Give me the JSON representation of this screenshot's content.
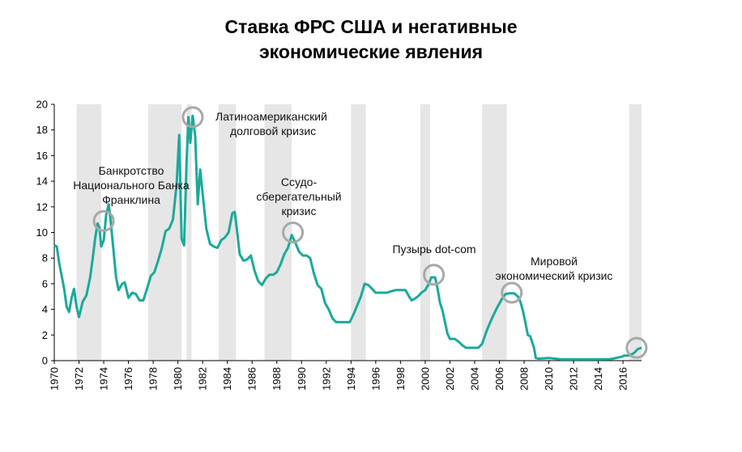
{
  "chart_data": {
    "type": "line",
    "title_lines": [
      "Ставка ФРС США и негативные",
      "экономические явления"
    ],
    "xlabel": "",
    "ylabel": "",
    "xlim": [
      1970,
      2017.5
    ],
    "ylim": [
      0,
      20
    ],
    "yticks": [
      0,
      2,
      4,
      6,
      8,
      10,
      12,
      14,
      16,
      18,
      20
    ],
    "xticks": [
      1970,
      1972,
      1974,
      1976,
      1978,
      1980,
      1982,
      1984,
      1986,
      1988,
      1990,
      1992,
      1994,
      1996,
      1998,
      2000,
      2002,
      2004,
      2006,
      2008,
      2010,
      2012,
      2014,
      2016
    ],
    "line_color": "#1aaa9a",
    "shade_color": "#e6e6e6",
    "circle_color": "#a8a8a8",
    "grid": false,
    "shaded_periods": [
      [
        1971.8,
        1973.8
      ],
      [
        1977.6,
        1980.3
      ],
      [
        1980.7,
        1981.1
      ],
      [
        1983.3,
        1984.7
      ],
      [
        1987.0,
        1989.2
      ],
      [
        1994.0,
        1995.2
      ],
      [
        1999.6,
        2000.4
      ],
      [
        2004.6,
        2006.6
      ],
      [
        2016.5,
        2017.5
      ]
    ],
    "series": [
      {
        "x": [
          1970.0,
          1970.2,
          1970.4,
          1970.6,
          1970.8,
          1971.0,
          1971.2,
          1971.4,
          1971.6,
          1971.8,
          1972.0,
          1972.3,
          1972.6,
          1972.9,
          1973.1,
          1973.3,
          1973.5,
          1973.65,
          1973.8,
          1974.0,
          1974.2,
          1974.4,
          1974.55,
          1974.75,
          1975.0,
          1975.2,
          1975.5,
          1975.7,
          1976.0,
          1976.3,
          1976.6,
          1976.9,
          1977.2,
          1977.5,
          1977.8,
          1978.1,
          1978.4,
          1978.7,
          1979.0,
          1979.3,
          1979.6,
          1979.9,
          1980.1,
          1980.3,
          1980.5,
          1980.7,
          1980.85,
          1981.0,
          1981.2,
          1981.4,
          1981.6,
          1981.8,
          1982.0,
          1982.3,
          1982.6,
          1982.9,
          1983.2,
          1983.5,
          1983.8,
          1984.1,
          1984.4,
          1984.6,
          1984.8,
          1985.0,
          1985.3,
          1985.6,
          1985.9,
          1986.2,
          1986.5,
          1986.8,
          1987.1,
          1987.4,
          1987.7,
          1988.0,
          1988.3,
          1988.6,
          1988.9,
          1989.2,
          1989.5,
          1989.8,
          1990.1,
          1990.4,
          1990.7,
          1991.0,
          1991.3,
          1991.6,
          1991.9,
          1992.2,
          1992.5,
          1992.8,
          1993.1,
          1993.5,
          1993.9,
          1994.2,
          1994.5,
          1994.8,
          1995.1,
          1995.4,
          1995.7,
          1996.0,
          1996.3,
          1996.6,
          1996.9,
          1997.2,
          1997.6,
          1998.0,
          1998.4,
          1998.7,
          1998.9,
          1999.1,
          1999.4,
          1999.7,
          2000.0,
          2000.3,
          2000.5,
          2000.8,
          2001.0,
          2001.2,
          2001.4,
          2001.6,
          2001.8,
          2002.0,
          2002.4,
          2002.8,
          2003.0,
          2003.3,
          2003.7,
          2004.0,
          2004.3,
          2004.6,
          2005.0,
          2005.4,
          2005.8,
          2006.2,
          2006.5,
          2006.8,
          2007.2,
          2007.5,
          2007.7,
          2007.9,
          2008.1,
          2008.3,
          2008.5,
          2008.8,
          2008.95,
          2009.2,
          2010.0,
          2011.0,
          2012.0,
          2013.0,
          2014.0,
          2015.0,
          2015.9,
          2016.1,
          2016.5,
          2016.9,
          2017.2,
          2017.5
        ],
        "y": [
          9.0,
          8.9,
          7.6,
          6.6,
          5.6,
          4.2,
          3.8,
          4.9,
          5.6,
          4.2,
          3.4,
          4.6,
          5.1,
          6.5,
          7.9,
          9.5,
          10.7,
          10.4,
          8.9,
          9.4,
          11.4,
          12.2,
          11.0,
          9.0,
          6.5,
          5.5,
          6.0,
          6.1,
          4.9,
          5.3,
          5.2,
          4.7,
          4.7,
          5.6,
          6.6,
          6.9,
          7.8,
          8.8,
          10.1,
          10.3,
          11.0,
          13.8,
          17.6,
          9.5,
          9.0,
          15.5,
          19.0,
          17.0,
          19.1,
          17.5,
          12.2,
          14.9,
          13.0,
          10.3,
          9.1,
          8.9,
          8.8,
          9.4,
          9.6,
          10.0,
          11.5,
          11.6,
          10.0,
          8.3,
          7.8,
          7.9,
          8.2,
          7.0,
          6.2,
          5.9,
          6.4,
          6.7,
          6.7,
          6.9,
          7.5,
          8.3,
          8.8,
          9.8,
          9.2,
          8.5,
          8.2,
          8.2,
          8.0,
          6.8,
          5.9,
          5.6,
          4.5,
          4.0,
          3.3,
          3.0,
          3.0,
          3.0,
          3.0,
          3.6,
          4.3,
          5.0,
          6.0,
          5.9,
          5.6,
          5.3,
          5.3,
          5.3,
          5.3,
          5.4,
          5.5,
          5.5,
          5.5,
          5.0,
          4.7,
          4.8,
          5.0,
          5.3,
          5.5,
          6.0,
          6.5,
          6.5,
          5.6,
          4.5,
          3.9,
          3.0,
          2.1,
          1.7,
          1.7,
          1.4,
          1.2,
          1.0,
          1.0,
          1.0,
          1.0,
          1.3,
          2.4,
          3.3,
          4.1,
          4.8,
          5.2,
          5.25,
          5.25,
          5.0,
          4.6,
          3.9,
          3.0,
          2.0,
          1.9,
          1.0,
          0.2,
          0.15,
          0.2,
          0.1,
          0.1,
          0.1,
          0.1,
          0.12,
          0.3,
          0.4,
          0.4,
          0.6,
          0.9,
          1.0
        ]
      }
    ],
    "annotations": [
      {
        "lines": [
          "Банкротство",
          "Национального Банка",
          "Франклина"
        ],
        "circle_at": [
          1974.0,
          10.9
        ]
      },
      {
        "lines": [
          "Латиноамериканский",
          "долговой кризис"
        ],
        "circle_at": [
          1981.2,
          19.0
        ]
      },
      {
        "lines": [
          "Ссудо-",
          "сберегательный",
          "кризис"
        ],
        "circle_at": [
          1989.3,
          10.0
        ]
      },
      {
        "lines": [
          "Пузырь dot-com"
        ],
        "circle_at": [
          2000.7,
          6.7
        ]
      },
      {
        "lines": [
          "Мировой",
          "экономический кризис"
        ],
        "circle_at": [
          2007.0,
          5.3
        ]
      },
      {
        "lines": [],
        "circle_at": [
          2017.1,
          1.0
        ]
      }
    ]
  }
}
